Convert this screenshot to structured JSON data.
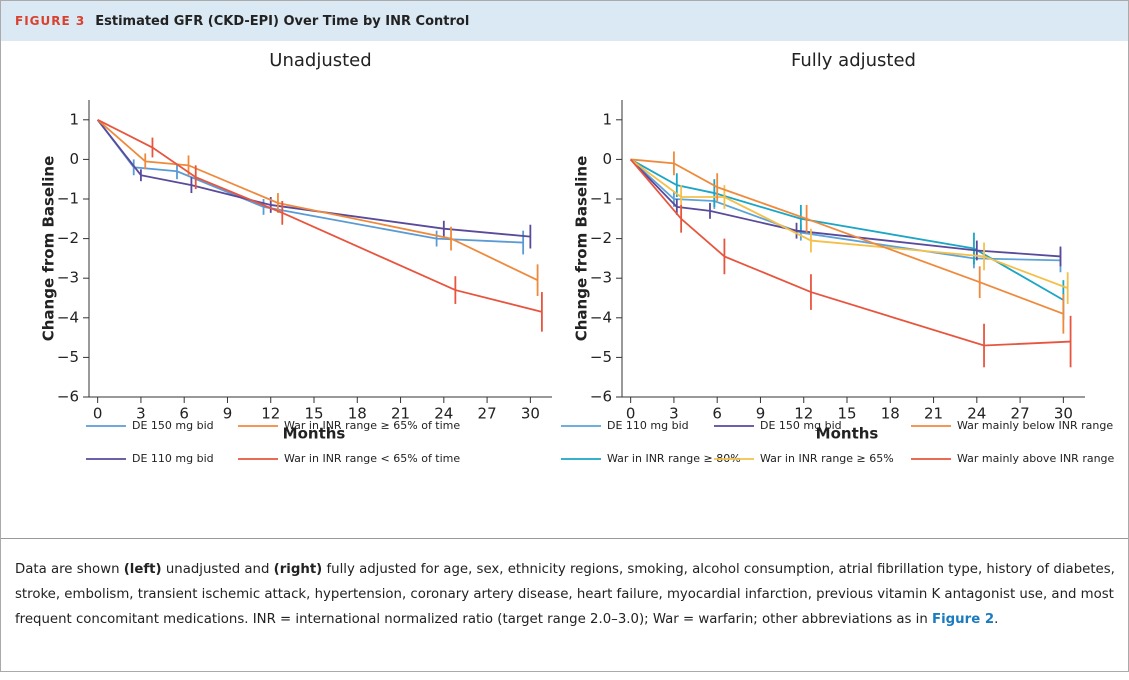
{
  "figure_label": "FIGURE 3",
  "figure_title": "Estimated GFR (CKD-EPI) Over Time by INR Control",
  "chart_data": [
    {
      "type": "line",
      "title": "Unadjusted",
      "y_label": "Change from Baseline",
      "x_label": "Months",
      "xlim": [
        -0.6,
        31.5
      ],
      "ylim": [
        -6,
        1.5
      ],
      "xticks": [
        0,
        3,
        6,
        9,
        12,
        15,
        18,
        21,
        24,
        27,
        30
      ],
      "yticks": [
        1,
        0,
        {
          "value": -1,
          "label": "−1"
        },
        {
          "value": -2,
          "label": "−2"
        },
        {
          "value": -3,
          "label": "−3"
        },
        {
          "value": -4,
          "label": "−4"
        },
        {
          "value": -5,
          "label": "−5"
        },
        {
          "value": -6,
          "label": "−6"
        }
      ],
      "series": [
        {
          "name": "DE 150 mg bid",
          "color": "#5b9bd5",
          "x": [
            0,
            2.5,
            5.5,
            11.5,
            23.5,
            29.5
          ],
          "values": [
            1,
            -0.2,
            -0.3,
            -1.2,
            -2.0,
            -2.1
          ],
          "errors": [
            0,
            0.2,
            0.2,
            0.2,
            0.2,
            0.3
          ]
        },
        {
          "name": "DE 110 mg bid",
          "color": "#5a4a9c",
          "x": [
            0,
            3,
            6.5,
            12,
            24,
            30
          ],
          "values": [
            1,
            -0.4,
            -0.65,
            -1.15,
            -1.75,
            -1.95
          ],
          "errors": [
            0,
            0.15,
            0.2,
            0.2,
            0.2,
            0.3
          ]
        },
        {
          "name": "War in INR range ≥ 65% of time",
          "color": "#ef8a3c",
          "x": [
            0,
            3.3,
            6.3,
            12.5,
            24.5,
            30.5
          ],
          "values": [
            1,
            -0.05,
            -0.15,
            -1.1,
            -2.0,
            -3.05
          ],
          "errors": [
            0,
            0.2,
            0.25,
            0.25,
            0.3,
            0.4
          ]
        },
        {
          "name": "War in INR range < 65% of time",
          "color": "#e8553e",
          "x": [
            0,
            3.8,
            6.8,
            12.8,
            24.8,
            30.8
          ],
          "values": [
            1,
            0.3,
            -0.45,
            -1.35,
            -3.3,
            -3.85
          ],
          "errors": [
            0,
            0.25,
            0.3,
            0.3,
            0.35,
            0.5
          ]
        }
      ]
    },
    {
      "type": "line",
      "title": "Fully adjusted",
      "y_label": "Change from Baseline",
      "x_label": "Months",
      "xlim": [
        -0.6,
        31.5
      ],
      "ylim": [
        -6,
        1.5
      ],
      "xticks": [
        0,
        3,
        6,
        9,
        12,
        15,
        18,
        21,
        24,
        27,
        30
      ],
      "yticks": [
        1,
        0,
        {
          "value": -1,
          "label": "−1"
        },
        {
          "value": -2,
          "label": "−2"
        },
        {
          "value": -3,
          "label": "−3"
        },
        {
          "value": -4,
          "label": "−4"
        },
        {
          "value": -5,
          "label": "−5"
        },
        {
          "value": -6,
          "label": "−6"
        }
      ],
      "series": [
        {
          "name": "DE 110 mg bid",
          "color": "#5ba3d9",
          "x": [
            0,
            3,
            5.8,
            11.8,
            23.8,
            29.8
          ],
          "values": [
            0,
            -1.0,
            -1.05,
            -1.85,
            -2.5,
            -2.55
          ],
          "errors": [
            0,
            0.2,
            0.2,
            0.2,
            0.25,
            0.3
          ]
        },
        {
          "name": "War in INR range ≥ 80%",
          "color": "#1aa6c4",
          "x": [
            0,
            3.2,
            5.8,
            11.8,
            23.8,
            30
          ],
          "values": [
            0,
            -0.65,
            -0.85,
            -1.5,
            -2.25,
            -3.55
          ],
          "errors": [
            0,
            0.3,
            0.35,
            0.35,
            0.4,
            0.5
          ]
        },
        {
          "name": "DE 150 mg bid",
          "color": "#5a4a9c",
          "x": [
            0,
            3.2,
            5.5,
            11.5,
            24,
            29.8
          ],
          "values": [
            0,
            -1.2,
            -1.3,
            -1.8,
            -2.3,
            -2.45
          ],
          "errors": [
            0,
            0.2,
            0.2,
            0.2,
            0.25,
            0.25
          ]
        },
        {
          "name": "War in INR range ≥ 65%",
          "color": "#f5c04a",
          "x": [
            0,
            3.5,
            6.5,
            12.5,
            24.5,
            30.3
          ],
          "values": [
            0,
            -0.95,
            -0.95,
            -2.05,
            -2.45,
            -3.25
          ],
          "errors": [
            0,
            0.3,
            0.3,
            0.3,
            0.35,
            0.4
          ]
        },
        {
          "name": "War mainly below INR range",
          "color": "#ef8a3c",
          "x": [
            0,
            3,
            6,
            12.2,
            24.2,
            30
          ],
          "values": [
            0,
            -0.1,
            -0.7,
            -1.5,
            -3.1,
            -3.9
          ],
          "errors": [
            0,
            0.3,
            0.35,
            0.35,
            0.4,
            0.5
          ]
        },
        {
          "name": "War mainly above INR range",
          "color": "#e8553e",
          "x": [
            0,
            3.5,
            6.5,
            12.5,
            24.5,
            30.5
          ],
          "values": [
            0,
            -1.5,
            -2.45,
            -3.35,
            -4.7,
            -4.6
          ],
          "errors": [
            0,
            0.35,
            0.45,
            0.45,
            0.55,
            0.65
          ]
        }
      ]
    }
  ],
  "caption": {
    "parts": [
      "Data are shown ",
      "(left)",
      " unadjusted and ",
      "(right)",
      " fully adjusted for age, sex, ethnicity regions, smoking, alcohol consumption, atrial fibrillation type, history of diabetes, stroke, embolism, transient ischemic attack, hypertension, coronary artery disease, heart failure, myocardial infarction, previous vitamin K antagonist use, and most frequent concomitant medications. INR = international normalized ratio (target range 2.0–3.0); War = warfarin; other abbreviations as in ",
      "Figure 2",
      "."
    ]
  }
}
